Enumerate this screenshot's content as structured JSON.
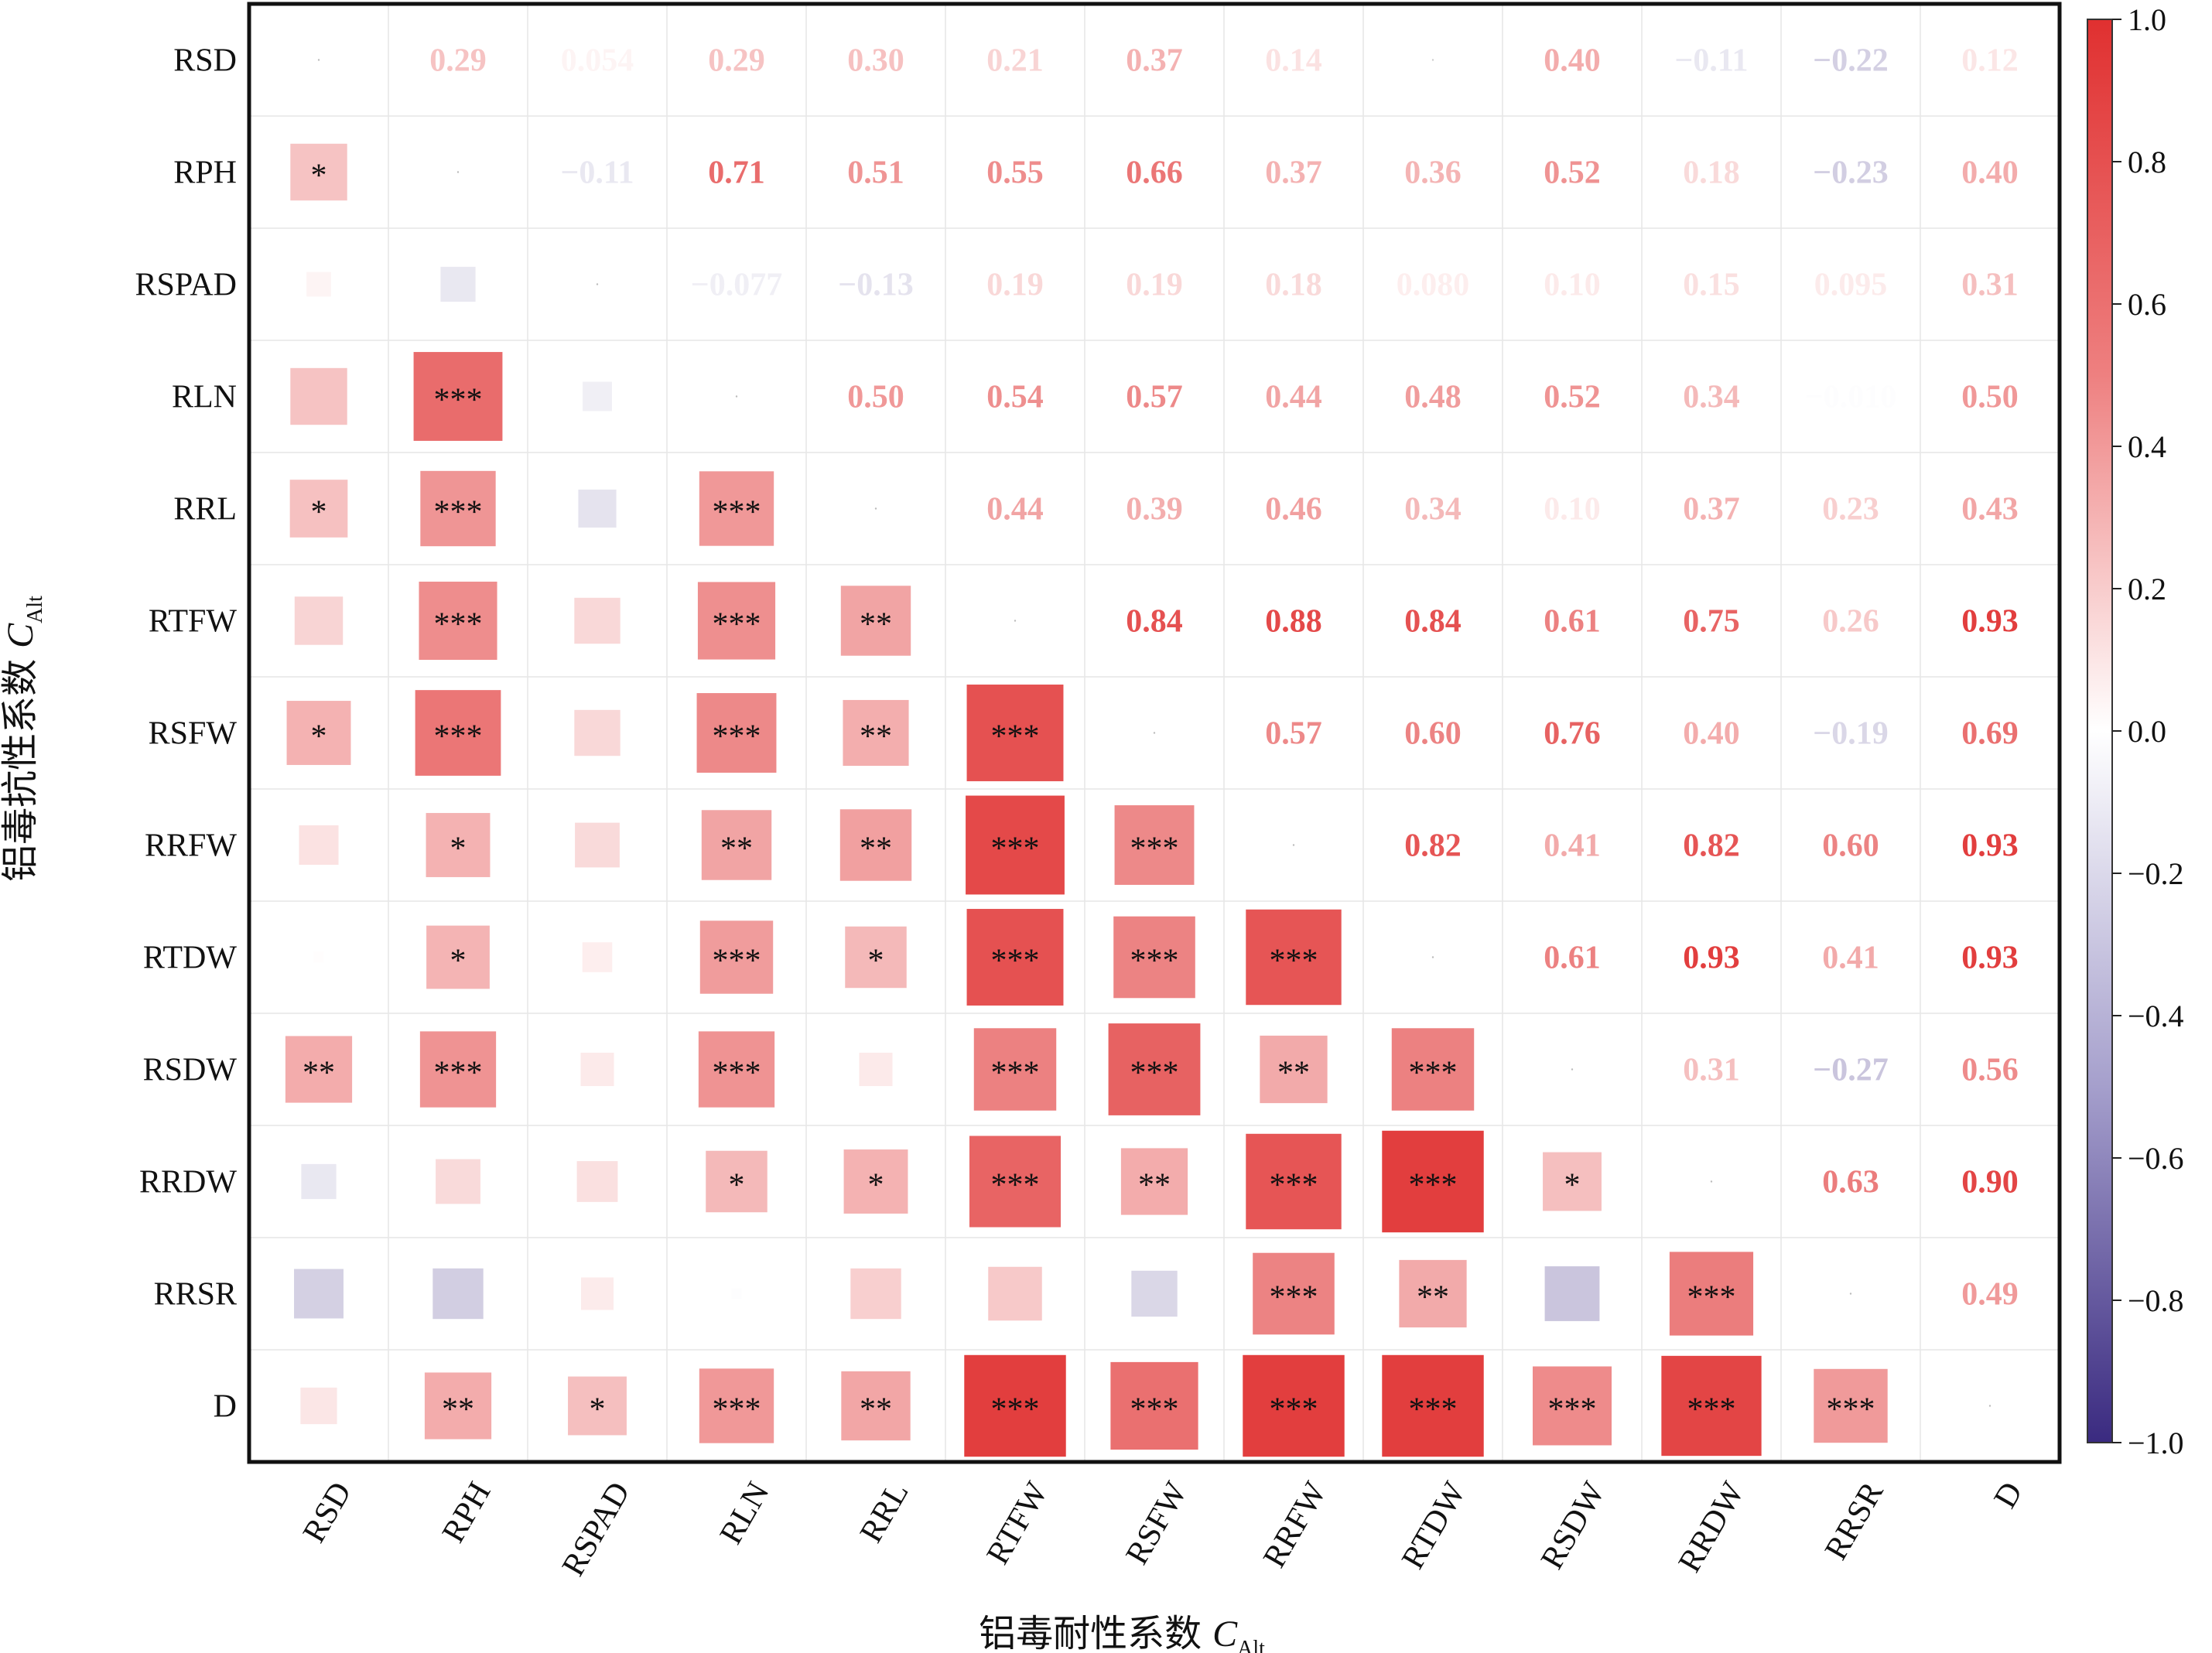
{
  "chart_data": {
    "type": "heatmap",
    "subtype": "mixed-correlation-matrix",
    "variables": [
      "RSD",
      "RPH",
      "RSPAD",
      "RLN",
      "RRL",
      "RTFW",
      "RSFW",
      "RRFW",
      "RTDW",
      "RSDW",
      "RRDW",
      "RRSR",
      "D"
    ],
    "upper_triangle": "correlation coefficients printed as numbers",
    "lower_triangle": "squares scaled by |r| with significance stars",
    "correlations": [
      [
        null,
        0.29,
        0.054,
        0.29,
        0.3,
        0.21,
        0.37,
        0.14,
        0.01,
        0.4,
        -0.11,
        -0.22,
        0.12
      ],
      [
        0.29,
        null,
        -0.11,
        0.71,
        0.51,
        0.55,
        0.66,
        0.37,
        0.36,
        0.52,
        0.18,
        -0.23,
        0.4
      ],
      [
        0.054,
        -0.11,
        null,
        -0.077,
        -0.13,
        0.19,
        0.19,
        0.18,
        0.08,
        0.1,
        0.15,
        0.095,
        0.31
      ],
      [
        0.29,
        0.71,
        -0.077,
        null,
        0.5,
        0.54,
        0.57,
        0.44,
        0.48,
        0.52,
        0.34,
        -0.01,
        0.5
      ],
      [
        0.3,
        0.51,
        -0.13,
        0.5,
        null,
        0.44,
        0.39,
        0.46,
        0.34,
        0.1,
        0.37,
        0.23,
        0.43
      ],
      [
        0.21,
        0.55,
        0.19,
        0.54,
        0.44,
        null,
        0.84,
        0.88,
        0.84,
        0.61,
        0.75,
        0.26,
        0.93
      ],
      [
        0.37,
        0.66,
        0.19,
        0.57,
        0.39,
        0.84,
        null,
        0.57,
        0.6,
        0.76,
        0.4,
        -0.19,
        0.69
      ],
      [
        0.14,
        0.37,
        0.18,
        0.44,
        0.46,
        0.88,
        0.57,
        null,
        0.82,
        0.41,
        0.82,
        0.6,
        0.93
      ],
      [
        0.01,
        0.36,
        0.08,
        0.48,
        0.34,
        0.84,
        0.6,
        0.82,
        null,
        0.61,
        0.93,
        0.41,
        0.93
      ],
      [
        0.4,
        0.52,
        0.1,
        0.52,
        0.1,
        0.61,
        0.76,
        0.41,
        0.61,
        null,
        0.31,
        -0.27,
        0.56
      ],
      [
        -0.11,
        0.18,
        0.15,
        0.34,
        0.37,
        0.75,
        0.4,
        0.82,
        0.93,
        0.31,
        null,
        0.63,
        0.9
      ],
      [
        -0.22,
        -0.23,
        0.095,
        -0.01,
        0.23,
        0.26,
        -0.19,
        0.6,
        0.41,
        -0.27,
        0.63,
        null,
        0.49
      ],
      [
        0.12,
        0.4,
        0.31,
        0.5,
        0.43,
        0.93,
        0.69,
        0.93,
        0.93,
        0.56,
        0.9,
        0.49,
        null
      ]
    ],
    "upper_labels": [
      [
        null,
        "0.29",
        "0.054",
        "0.29",
        "0.30",
        "0.21",
        "0.37",
        "0.14",
        "",
        "0.40",
        "−0.11",
        "−0.22",
        "0.12"
      ],
      [
        null,
        null,
        "−0.11",
        "0.71",
        "0.51",
        "0.55",
        "0.66",
        "0.37",
        "0.36",
        "0.52",
        "0.18",
        "−0.23",
        "0.40"
      ],
      [
        null,
        null,
        null,
        "−0.077",
        "−0.13",
        "0.19",
        "0.19",
        "0.18",
        "0.080",
        "0.10",
        "0.15",
        "0.095",
        "0.31"
      ],
      [
        null,
        null,
        null,
        null,
        "0.50",
        "0.54",
        "0.57",
        "0.44",
        "0.48",
        "0.52",
        "0.34",
        "−0.010",
        "0.50"
      ],
      [
        null,
        null,
        null,
        null,
        null,
        "0.44",
        "0.39",
        "0.46",
        "0.34",
        "0.10",
        "0.37",
        "0.23",
        "0.43"
      ],
      [
        null,
        null,
        null,
        null,
        null,
        null,
        "0.84",
        "0.88",
        "0.84",
        "0.61",
        "0.75",
        "0.26",
        "0.93"
      ],
      [
        null,
        null,
        null,
        null,
        null,
        null,
        null,
        "0.57",
        "0.60",
        "0.76",
        "0.40",
        "−0.19",
        "0.69"
      ],
      [
        null,
        null,
        null,
        null,
        null,
        null,
        null,
        null,
        "0.82",
        "0.41",
        "0.82",
        "0.60",
        "0.93"
      ],
      [
        null,
        null,
        null,
        null,
        null,
        null,
        null,
        null,
        null,
        "0.61",
        "0.93",
        "0.41",
        "0.93"
      ],
      [
        null,
        null,
        null,
        null,
        null,
        null,
        null,
        null,
        null,
        null,
        "0.31",
        "−0.27",
        "0.56"
      ],
      [
        null,
        null,
        null,
        null,
        null,
        null,
        null,
        null,
        null,
        null,
        null,
        "0.63",
        "0.90"
      ],
      [
        null,
        null,
        null,
        null,
        null,
        null,
        null,
        null,
        null,
        null,
        null,
        null,
        "0.49"
      ],
      [
        null,
        null,
        null,
        null,
        null,
        null,
        null,
        null,
        null,
        null,
        null,
        null,
        null
      ]
    ],
    "significance": [
      [
        null,
        null,
        null,
        null,
        null,
        null,
        null,
        null,
        null,
        null,
        null,
        null,
        null
      ],
      [
        "*",
        null,
        null,
        null,
        null,
        null,
        null,
        null,
        null,
        null,
        null,
        null,
        null
      ],
      [
        "",
        "",
        null,
        null,
        null,
        null,
        null,
        null,
        null,
        null,
        null,
        null,
        null
      ],
      [
        "",
        "***",
        "",
        null,
        null,
        null,
        null,
        null,
        null,
        null,
        null,
        null,
        null
      ],
      [
        "*",
        "***",
        "",
        "***",
        null,
        null,
        null,
        null,
        null,
        null,
        null,
        null,
        null
      ],
      [
        "",
        "***",
        "",
        "***",
        "**",
        null,
        null,
        null,
        null,
        null,
        null,
        null,
        null
      ],
      [
        "*",
        "***",
        "",
        "***",
        "**",
        "***",
        null,
        null,
        null,
        null,
        null,
        null,
        null
      ],
      [
        "",
        "*",
        "",
        "**",
        "**",
        "***",
        "***",
        null,
        null,
        null,
        null,
        null,
        null
      ],
      [
        "",
        "*",
        "",
        "***",
        "*",
        "***",
        "***",
        "***",
        null,
        null,
        null,
        null,
        null
      ],
      [
        "**",
        "***",
        "",
        "***",
        "",
        "***",
        "***",
        "**",
        "***",
        null,
        null,
        null,
        null
      ],
      [
        "",
        "",
        "",
        "*",
        "*",
        "***",
        "**",
        "***",
        "***",
        "*",
        null,
        null,
        null
      ],
      [
        "",
        "",
        "",
        "",
        "",
        "",
        "",
        "***",
        "**",
        "",
        "***",
        null,
        null
      ],
      [
        "",
        "**",
        "*",
        "***",
        "**",
        "***",
        "***",
        "***",
        "***",
        "***",
        "***",
        "***",
        null
      ]
    ],
    "xlabel": "铝毒耐性系数",
    "xlabel_symbol": "C",
    "xlabel_sub": "Alt",
    "ylabel": "铝毒抗性系数",
    "ylabel_symbol": "C",
    "ylabel_sub": "Alt",
    "colorbar": {
      "range": [
        -1.0,
        1.0
      ],
      "ticks": [
        1.0,
        0.8,
        0.6,
        0.4,
        0.2,
        0.0,
        -0.2,
        -0.4,
        -0.6,
        -0.8,
        -1.0
      ],
      "tick_labels": [
        "1.0",
        "0.8",
        "0.6",
        "0.4",
        "0.2",
        "0.0",
        "−0.2",
        "−0.4",
        "−0.6",
        "−0.8",
        "−1.0"
      ],
      "colors": {
        "negative": "#3a2a80",
        "zero": "#ffffff",
        "positive": "#e03030"
      }
    }
  }
}
